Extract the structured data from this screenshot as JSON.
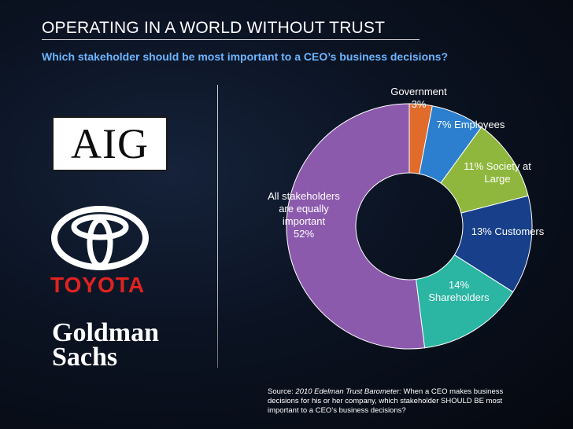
{
  "header": {
    "title": "OPERATING IN A WORLD WITHOUT TRUST",
    "subtitle": "Which stakeholder should be most important to a CEO’s business decisions?"
  },
  "logos": {
    "aig": "AIG",
    "toyota": "TOYOTA",
    "goldman_line1": "Goldman",
    "goldman_line2": "Sachs"
  },
  "colors": {
    "title": "#ffffff",
    "subtitle": "#6cb4ff",
    "toyota_red": "#e0231f"
  },
  "chart_data": {
    "type": "pie",
    "donut": true,
    "title": "",
    "slices": [
      {
        "label": "Government",
        "value": 3,
        "color": "#e06b2a",
        "label_lines": [
          "Government",
          "3%"
        ]
      },
      {
        "label": "Employees",
        "value": 7,
        "color": "#2b7fce",
        "label_lines": [
          "7% Employees"
        ]
      },
      {
        "label": "Society at Large",
        "value": 11,
        "color": "#8fb73e",
        "label_lines": [
          "11% Society at",
          "Large"
        ]
      },
      {
        "label": "Customers",
        "value": 13,
        "color": "#173f8a",
        "label_lines": [
          "13% Customers"
        ]
      },
      {
        "label": "Shareholders",
        "value": 14,
        "color": "#2bb5a3",
        "label_lines": [
          "14%",
          "Shareholders"
        ]
      },
      {
        "label": "All stakeholders are equally important",
        "value": 52,
        "color": "#8c5aad",
        "label_lines": [
          "All stakeholders",
          "are equally",
          "important",
          "52%"
        ]
      }
    ]
  },
  "source": {
    "prefix": "Source: ",
    "publication": "2010 Edelman Trust Barometer:",
    "text": " When a CEO makes business decisions for his or her company, which stakeholder SHOULD BE most important to a CEO’s business decisions?"
  }
}
